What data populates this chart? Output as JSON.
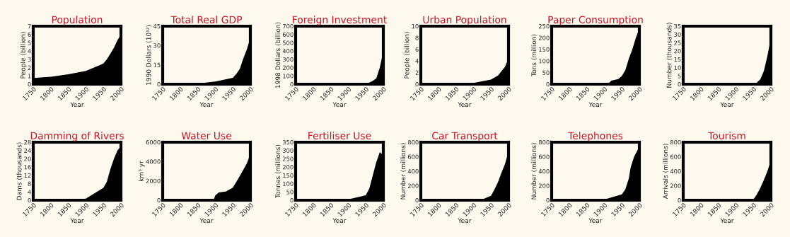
{
  "chart_data": [
    {
      "type": "area",
      "title": "Population",
      "xlabel": "Year",
      "ylabel": "People (billion)",
      "x": [
        1750,
        1800,
        1850,
        1900,
        1940,
        1950,
        1960,
        1970,
        1980,
        1990,
        2000
      ],
      "series": [
        {
          "color": "#000000",
          "values": [
            0.75,
            0.9,
            1.2,
            1.6,
            2.3,
            2.5,
            3.0,
            3.7,
            4.4,
            5.3,
            6.0
          ]
        }
      ],
      "xlim": [
        1750,
        2000
      ],
      "xticks": [
        1750,
        1800,
        1850,
        1900,
        1950,
        2000
      ],
      "ylim": [
        0,
        7
      ],
      "yticks": [
        0,
        1,
        2,
        3,
        4,
        5,
        6,
        7
      ],
      "grid": false
    },
    {
      "type": "area",
      "title": "Total Real GDP",
      "xlabel": "Year",
      "ylabel": "1990 Dollars (10¹²)",
      "x": [
        1750,
        1850,
        1900,
        1950,
        1960,
        1970,
        1980,
        1990,
        2000
      ],
      "series": [
        {
          "color": "#000000",
          "values": [
            0.3,
            0.6,
            2,
            5,
            8,
            12,
            20,
            27,
            36
          ]
        }
      ],
      "xlim": [
        1750,
        2000
      ],
      "xticks": [
        1750,
        1800,
        1850,
        1900,
        1950,
        2000
      ],
      "ylim": [
        0,
        45
      ],
      "yticks": [
        0,
        15,
        30,
        45
      ],
      "grid": false
    },
    {
      "type": "area",
      "title": "Foreign Investment",
      "xlabel": "Year",
      "ylabel": "1998 Dollars (billion)",
      "x": [
        1750,
        1950,
        1960,
        1970,
        1980,
        1990,
        2000
      ],
      "series": [
        {
          "color": "#000000",
          "values": [
            0,
            0,
            20,
            40,
            70,
            200,
            400
          ]
        }
      ],
      "xlim": [
        1750,
        2000
      ],
      "xticks": [
        1750,
        1800,
        1850,
        1900,
        1950,
        2000
      ],
      "ylim": [
        0,
        700
      ],
      "yticks": [
        0,
        100,
        200,
        300,
        400,
        500,
        600,
        700
      ],
      "grid": false
    },
    {
      "type": "area",
      "title": "Urban Population",
      "xlabel": "Year",
      "ylabel": "People (billion)",
      "x": [
        1750,
        1850,
        1900,
        1950,
        1970,
        1990,
        2000
      ],
      "series": [
        {
          "color": "#000000",
          "values": [
            0,
            0.05,
            0.2,
            0.8,
            1.5,
            3,
            4.5
          ]
        }
      ],
      "xlim": [
        1750,
        2000
      ],
      "xticks": [
        1750,
        1800,
        1850,
        1900,
        1950,
        2000
      ],
      "ylim": [
        0,
        10
      ],
      "yticks": [
        0,
        2,
        4,
        6,
        8,
        10
      ],
      "grid": false
    },
    {
      "type": "area",
      "title": "Paper Consumption",
      "xlabel": "Year",
      "ylabel": "Tons (million)",
      "x": [
        1750,
        1910,
        1920,
        1940,
        1950,
        1960,
        1970,
        1980,
        1990,
        2000
      ],
      "series": [
        {
          "color": "#000000",
          "values": [
            0,
            0,
            15,
            22,
            35,
            60,
            110,
            150,
            200,
            240
          ]
        }
      ],
      "xlim": [
        1750,
        2000
      ],
      "xticks": [
        1750,
        1800,
        1850,
        1900,
        1950,
        2000
      ],
      "ylim": [
        0,
        250
      ],
      "yticks": [
        0,
        50,
        100,
        150,
        200,
        250
      ],
      "grid": false
    },
    {
      "type": "area",
      "title": null,
      "xlabel": "Year",
      "ylabel": "Number (thousands)",
      "x": [
        1750,
        1955,
        1960,
        1970,
        1980,
        1990,
        2000
      ],
      "series": [
        {
          "color": "#000000",
          "values": [
            0,
            0,
            1,
            3,
            8,
            17,
            28
          ]
        }
      ],
      "xlim": [
        1750,
        2000
      ],
      "xticks": [
        1750,
        1800,
        1850,
        1900,
        1950,
        2000
      ],
      "ylim": [
        0,
        35
      ],
      "yticks": [
        0,
        5,
        10,
        15,
        20,
        25,
        30,
        35
      ],
      "grid": false
    },
    {
      "type": "area",
      "title": "Damming of Rivers",
      "xlabel": "Year",
      "ylabel": "Dams (thousands)",
      "x": [
        1750,
        1755,
        1850,
        1900,
        1950,
        1960,
        1970,
        1980,
        1990,
        2000
      ],
      "series": [
        {
          "color": "#000000",
          "values": [
            1,
            0,
            0,
            0.8,
            6,
            9,
            15,
            20,
            24,
            26
          ]
        }
      ],
      "xlim": [
        1750,
        2000
      ],
      "xticks": [
        1750,
        1800,
        1850,
        1900,
        1950,
        2000
      ],
      "ylim": [
        0,
        28
      ],
      "yticks": [
        0,
        4,
        8,
        12,
        16,
        20,
        24,
        28
      ],
      "grid": false
    },
    {
      "type": "area",
      "title": "Water Use",
      "xlabel": "Year",
      "ylabel": "km³ yr",
      "x": [
        1750,
        1895,
        1900,
        1910,
        1930,
        1950,
        1970,
        1990,
        2000
      ],
      "series": [
        {
          "color": "#000000",
          "values": [
            0,
            0,
            500,
            800,
            900,
            1300,
            2500,
            3800,
            4800
          ]
        }
      ],
      "xlim": [
        1750,
        2000
      ],
      "xticks": [
        1750,
        1800,
        1850,
        1900,
        1950,
        2000
      ],
      "ylim": [
        0,
        6000
      ],
      "yticks": [
        0,
        2000,
        4000,
        6000
      ],
      "grid": false
    },
    {
      "type": "area",
      "title": "Fertiliser Use",
      "xlabel": "Year",
      "ylabel": "Tonnes (millions)",
      "x": [
        1750,
        1900,
        1950,
        1960,
        1970,
        1980,
        1990,
        1995,
        2000
      ],
      "series": [
        {
          "color": "#000000",
          "values": [
            0,
            5,
            30,
            70,
            150,
            230,
            290,
            280,
            290
          ]
        }
      ],
      "xlim": [
        1750,
        2000
      ],
      "xticks": [
        1750,
        1800,
        1850,
        1900,
        1950,
        2000
      ],
      "ylim": [
        0,
        350
      ],
      "yticks": [
        0,
        50,
        100,
        150,
        200,
        250,
        300,
        350
      ],
      "grid": false
    },
    {
      "type": "area",
      "title": "Car Transport",
      "xlabel": "Year",
      "ylabel": "Number (millions)",
      "x": [
        1750,
        1920,
        1950,
        1960,
        1970,
        1980,
        1990,
        2000
      ],
      "series": [
        {
          "color": "#000000",
          "values": [
            0,
            0,
            60,
            150,
            250,
            380,
            500,
            670
          ]
        }
      ],
      "xlim": [
        1750,
        2000
      ],
      "xticks": [
        1750,
        1800,
        1850,
        1900,
        1950,
        2000
      ],
      "ylim": [
        0,
        800
      ],
      "yticks": [
        0,
        200,
        400,
        600,
        800
      ],
      "grid": false
    },
    {
      "type": "area",
      "title": "Telephones",
      "xlabel": "Year",
      "ylabel": "Number (millions)",
      "x": [
        1750,
        1870,
        1900,
        1950,
        1960,
        1970,
        1975,
        1985,
        2000
      ],
      "series": [
        {
          "color": "#000000",
          "values": [
            0,
            0,
            10,
            80,
            150,
            300,
            450,
            600,
            740
          ]
        }
      ],
      "xlim": [
        1750,
        2000
      ],
      "xticks": [
        1750,
        1800,
        1850,
        1900,
        1950,
        2000
      ],
      "ylim": [
        0,
        800
      ],
      "yticks": [
        0,
        200,
        400,
        600,
        800
      ],
      "grid": false
    },
    {
      "type": "area",
      "title": "Tourism",
      "xlabel": "Year",
      "ylabel": "Arrivals (millions)",
      "x": [
        1750,
        1950,
        1960,
        1970,
        1980,
        1990,
        2000
      ],
      "series": [
        {
          "color": "#000000",
          "values": [
            0,
            10,
            80,
            170,
            280,
            400,
            550
          ]
        }
      ],
      "xlim": [
        1750,
        2000
      ],
      "xticks": [
        1750,
        1800,
        1850,
        1900,
        1950,
        2000
      ],
      "ylim": [
        0,
        800
      ],
      "yticks": [
        0,
        200,
        400,
        600,
        800
      ],
      "grid": false
    }
  ]
}
